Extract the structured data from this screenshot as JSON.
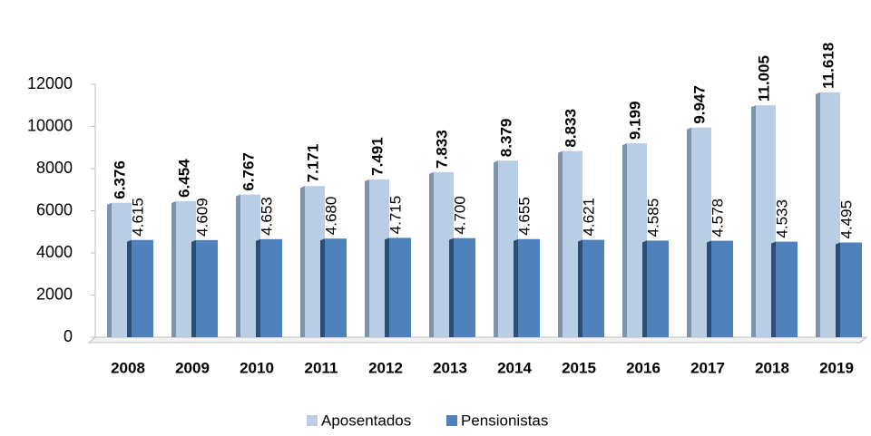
{
  "chart_data": {
    "type": "bar",
    "categories": [
      "2008",
      "2009",
      "2010",
      "2011",
      "2012",
      "2013",
      "2014",
      "2015",
      "2016",
      "2017",
      "2018",
      "2019"
    ],
    "series": [
      {
        "name": "Aposentados",
        "color": "#b9cde5",
        "values": [
          6376,
          6454,
          6767,
          7171,
          7491,
          7833,
          8379,
          8833,
          9199,
          9947,
          11005,
          11618
        ],
        "value_labels": [
          "6.376",
          "6.454",
          "6.767",
          "7.171",
          "7.491",
          "7.833",
          "8.379",
          "8.833",
          "9.199",
          "9.947",
          "11.005",
          "11.618"
        ]
      },
      {
        "name": "Pensionistas",
        "color": "#4f81bd",
        "values": [
          4615,
          4609,
          4653,
          4680,
          4715,
          4700,
          4655,
          4621,
          4585,
          4578,
          4533,
          4495
        ],
        "value_labels": [
          "4.615",
          "4.609",
          "4.653",
          "4.680",
          "4.715",
          "4.700",
          "4.655",
          "4.621",
          "4.585",
          "4.578",
          "4.533",
          "4.495"
        ]
      }
    ],
    "ylim": [
      0,
      12000
    ],
    "yticks": [
      0,
      2000,
      4000,
      6000,
      8000,
      10000,
      12000
    ]
  }
}
